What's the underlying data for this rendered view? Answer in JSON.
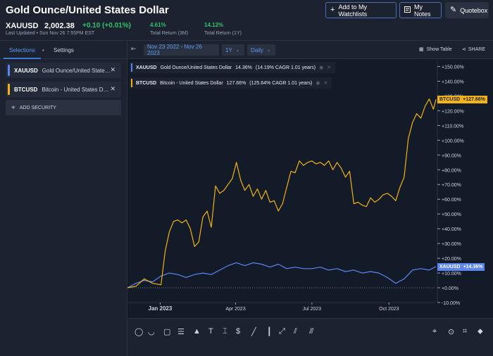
{
  "header": {
    "title": "Gold Ounce/United States Dollar",
    "ticker": "XAUUSD",
    "price": "2,002.38",
    "change": "+0.10  (+0.01%)",
    "last_updated": "Last Updated • Sun Nov 26 7:55PM EST",
    "return_3m_value": "4.61%",
    "return_3m_label": "Total Return (3M)",
    "return_1y_value": "14.12%",
    "return_1y_label": "Total Return (1Y)",
    "watchlist_label": "Add to My Watchlists",
    "notes_label": "My Notes",
    "quotebox_label": "Quotebox"
  },
  "sidebar": {
    "tabs": [
      {
        "label": "Selections"
      },
      {
        "label": "Settings"
      }
    ],
    "securities": [
      {
        "symbol": "XAUUSD",
        "name": "Gold Ounce/United States Dollar",
        "color": "#5b86f0"
      },
      {
        "symbol": "BTCUSD",
        "name": "Bitcoin - United States Dollar",
        "color": "#f2b316"
      }
    ],
    "add_security_label": "ADD SECURITY"
  },
  "toolbar": {
    "date_range": "Nov 23 2022 - Nov 26 2023",
    "period": "1Y",
    "interval": "Daily",
    "show_table_label": "Show Table",
    "share_label": "SHARE"
  },
  "legend": [
    {
      "symbol": "XAUUSD",
      "name": "Gold Ounce/United States Dollar",
      "return": "14.36%",
      "cagr": "(14.19% CAGR 1.01 years)",
      "color": "#5b86f0"
    },
    {
      "symbol": "BTCUSD",
      "name": "Bitcoin - United States Dollar",
      "return": "127.66%",
      "cagr": "(125.64% CAGR 1.01 years)",
      "color": "#f2b316"
    }
  ],
  "badges": {
    "btc_symbol": "BTCUSD",
    "btc_value": "+127.66%",
    "xau_symbol": "XAUUSD",
    "xau_value": "+14.36%"
  },
  "chart_data": {
    "type": "line",
    "ylim": [
      -10,
      155
    ],
    "y_ticks": [
      "+150.00%",
      "+140.00%",
      "+130.00%",
      "+120.00%",
      "+110.00%",
      "+100.00%",
      "+90.00%",
      "+80.00%",
      "+70.00%",
      "+60.00%",
      "+50.00%",
      "+40.00%",
      "+30.00%",
      "+20.00%",
      "+10.00%",
      "+0.00%",
      "-10.00%"
    ],
    "y_tick_values": [
      150,
      140,
      130,
      120,
      110,
      100,
      90,
      80,
      70,
      60,
      50,
      40,
      30,
      20,
      10,
      0,
      -10
    ],
    "x_ticks": [
      "Jan 2023",
      "Apr 2023",
      "Jul 2023",
      "Oct 2023"
    ],
    "x_tick_days": [
      39,
      129,
      220,
      312
    ],
    "x_range_days": [
      0,
      368
    ],
    "series": [
      {
        "name": "XAUUSD",
        "color": "#5b86f0",
        "x": [
          0,
          10,
          20,
          30,
          40,
          50,
          60,
          70,
          80,
          90,
          100,
          110,
          120,
          130,
          140,
          150,
          160,
          170,
          180,
          190,
          200,
          210,
          220,
          230,
          240,
          250,
          260,
          270,
          280,
          290,
          300,
          310,
          320,
          330,
          340,
          350,
          360,
          368
        ],
        "values": [
          0,
          3,
          5,
          4,
          8,
          10,
          9,
          7,
          9,
          10,
          9,
          12,
          15,
          17,
          15,
          17,
          16,
          14,
          16,
          13,
          14,
          13,
          13,
          14,
          12,
          13,
          11,
          12,
          10,
          11,
          10,
          7,
          3,
          6,
          12,
          13,
          12,
          14.36
        ]
      },
      {
        "name": "BTCUSD",
        "color": "#f2b316",
        "x": [
          0,
          10,
          20,
          30,
          40,
          45,
          50,
          55,
          60,
          65,
          70,
          75,
          80,
          85,
          90,
          95,
          100,
          105,
          110,
          115,
          120,
          125,
          130,
          135,
          140,
          145,
          150,
          155,
          160,
          165,
          170,
          175,
          180,
          185,
          190,
          195,
          200,
          205,
          210,
          215,
          220,
          225,
          230,
          235,
          240,
          245,
          250,
          255,
          260,
          265,
          270,
          275,
          280,
          285,
          290,
          295,
          300,
          305,
          310,
          315,
          320,
          325,
          330,
          335,
          340,
          345,
          350,
          355,
          360,
          365,
          368
        ],
        "values": [
          0,
          1,
          6,
          3,
          2,
          25,
          38,
          45,
          46,
          44,
          46,
          40,
          28,
          31,
          48,
          52,
          41,
          69,
          64,
          66,
          70,
          74,
          85,
          73,
          66,
          70,
          62,
          67,
          60,
          66,
          58,
          59,
          52,
          57,
          68,
          79,
          78,
          86,
          83,
          85,
          86,
          84,
          85,
          83,
          86,
          80,
          85,
          81,
          75,
          79,
          57,
          58,
          56,
          55,
          61,
          58,
          60,
          63,
          64,
          62,
          59,
          68,
          75,
          101,
          112,
          118,
          115,
          123,
          128,
          121,
          127.66
        ]
      }
    ],
    "baseline": 0
  },
  "drawing_tools": [
    "circle",
    "arc",
    "rectangle",
    "fib",
    "arrow",
    "text",
    "cursor",
    "money",
    "line",
    "vertical-line",
    "ray",
    "parallel"
  ],
  "right_tools": [
    "crosshair",
    "magnet",
    "crop",
    "tag"
  ]
}
